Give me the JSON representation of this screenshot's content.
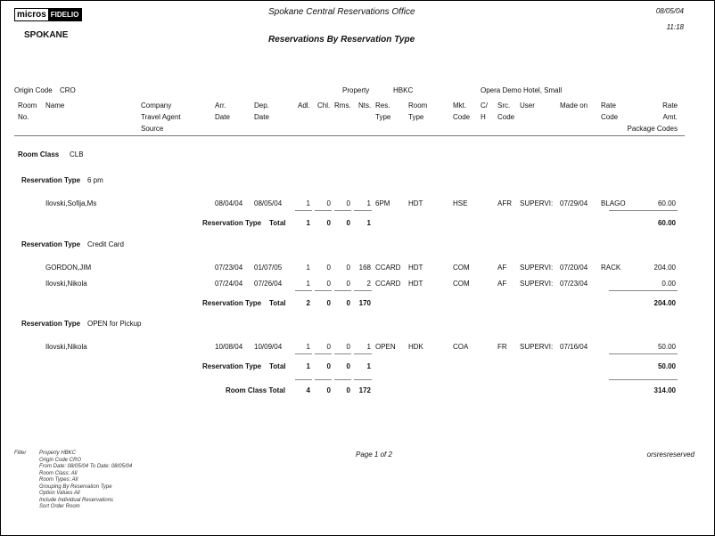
{
  "header": {
    "logo_left": "micros",
    "logo_right": "FIDELIO",
    "property_name": "SPOKANE",
    "office": "Spokane Central Reservations Office",
    "report_title": "Reservations By Reservation Type",
    "date": "08/05/04",
    "time": "11:18"
  },
  "params": {
    "origin_label": "Origin Code",
    "origin_value": "CRO",
    "property_label": "Property",
    "property_value": "HBKC",
    "hotel_name": "Opera Demo Hotel, Small"
  },
  "columns": {
    "room": [
      "Room",
      "No."
    ],
    "name": "Name",
    "company": [
      "Company",
      "Travel Agent",
      "Source"
    ],
    "arr": [
      "Arr.",
      "Date"
    ],
    "dep": [
      "Dep.",
      "Date"
    ],
    "adl": "Adl.",
    "chl": "Chl.",
    "rms": "Rms.",
    "nts": "Nts.",
    "res_type": [
      "Res.",
      "Type"
    ],
    "room_type": [
      "Room",
      "Type"
    ],
    "mkt": [
      "Mkt.",
      "Code"
    ],
    "ch": [
      "C/",
      "H"
    ],
    "src": [
      "Src.",
      "Code"
    ],
    "user": "User",
    "made_on": "Made on",
    "rate_code": [
      "Rate",
      "Code"
    ],
    "rate_amt": [
      "Rate",
      "Amt."
    ],
    "package": "Package Codes"
  },
  "room_class": {
    "label": "Room Class",
    "value": "CLB"
  },
  "groups": [
    {
      "label": "Reservation Type",
      "value": "6 pm",
      "rows": [
        {
          "name": "Ilovski,Sofija,Ms",
          "arr": "08/04/04",
          "dep": "08/05/04",
          "adl": "1",
          "chl": "0",
          "rms": "0",
          "nts": "1",
          "res_type": "6PM",
          "room_type": "HDT",
          "mkt": "HSE",
          "src": "AFR",
          "user": "SUPERVI:",
          "made_on": "07/29/04",
          "rate_code": "BLAGO",
          "amt": "60.00"
        }
      ],
      "total": {
        "label": "Reservation Type",
        "label2": "Total",
        "adl": "1",
        "chl": "0",
        "rms": "0",
        "nts": "1",
        "amt": "60.00"
      }
    },
    {
      "label": "Reservation Type",
      "value": "Credit Card",
      "rows": [
        {
          "name": "GORDON,JIM",
          "arr": "07/23/04",
          "dep": "01/07/05",
          "adl": "1",
          "chl": "0",
          "rms": "0",
          "nts": "168",
          "res_type": "CCARD",
          "room_type": "HDT",
          "mkt": "COM",
          "src": "AF",
          "user": "SUPERVI:",
          "made_on": "07/20/04",
          "rate_code": "RACK",
          "amt": "204.00"
        },
        {
          "name": "Ilovski,Nikola",
          "arr": "07/24/04",
          "dep": "07/26/04",
          "adl": "1",
          "chl": "0",
          "rms": "0",
          "nts": "2",
          "res_type": "CCARD",
          "room_type": "HDT",
          "mkt": "COM",
          "src": "AF",
          "user": "SUPERVI:",
          "made_on": "07/23/04",
          "rate_code": "",
          "amt": "0.00"
        }
      ],
      "total": {
        "label": "Reservation Type",
        "label2": "Total",
        "adl": "2",
        "chl": "0",
        "rms": "0",
        "nts": "170",
        "amt": "204.00"
      }
    },
    {
      "label": "Reservation Type",
      "value": "OPEN for Pickup",
      "rows": [
        {
          "name": "Ilovski,Nikola",
          "arr": "10/08/04",
          "dep": "10/09/04",
          "adl": "1",
          "chl": "0",
          "rms": "0",
          "nts": "1",
          "res_type": "OPEN",
          "room_type": "HDK",
          "mkt": "COA",
          "src": "FR",
          "user": "SUPERVI:",
          "made_on": "07/16/04",
          "rate_code": "",
          "amt": "50.00"
        }
      ],
      "total": {
        "label": "Reservation Type",
        "label2": "Total",
        "adl": "1",
        "chl": "0",
        "rms": "0",
        "nts": "1",
        "amt": "50.00"
      }
    }
  ],
  "room_class_total": {
    "label": "Room Class Total",
    "adl": "4",
    "chl": "0",
    "rms": "0",
    "nts": "172",
    "amt": "314.00"
  },
  "footer": {
    "filter_label": "Filter",
    "filter_lines": [
      "Property HBKC",
      "Origin Code CRO",
      "From Date:  08/05/04   To Date:  08/05/04",
      "Room Class:  All",
      "Room Types:  All",
      "Grouping By          Reservation Type",
      "Option Values       All",
      "Include Individual Reservations",
      "Sort Order           Room"
    ],
    "page": "Page 1 of 2",
    "report_id": "orsresreserved"
  }
}
